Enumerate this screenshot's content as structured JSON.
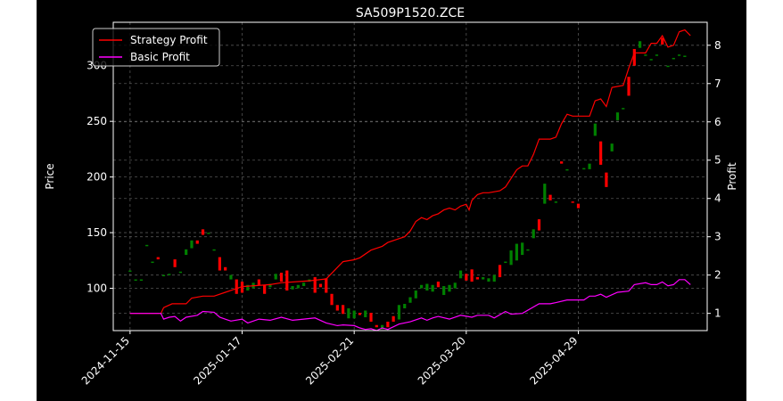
{
  "chart_data": {
    "type": "candlestick_with_lines",
    "title": "SA509P1520.ZCE",
    "ylabel_left": "Price",
    "ylabel_right": "Profit",
    "xlabel": "",
    "grid": true,
    "legend_placement": "top-left",
    "colors": {
      "background": "#000000",
      "up": "#008000",
      "down": "#ff0000",
      "strategy": "#ff0000",
      "basic": "#ff00ff",
      "grid": "#777777",
      "text": "#ffffff"
    },
    "x_ticks": [
      "2024-11-15",
      "2025-01-17",
      "2025-02-21",
      "2025-03-20",
      "2025-04-29"
    ],
    "x_tick_index": [
      0,
      40,
      80,
      120,
      160
    ],
    "x_range": [
      -6,
      206
    ],
    "y_left": {
      "range": [
        62,
        339
      ],
      "ticks": [
        100,
        150,
        200,
        250,
        300
      ]
    },
    "y_right": {
      "range": [
        0.55,
        8.6
      ],
      "ticks": [
        1,
        2,
        3,
        4,
        5,
        6,
        7,
        8
      ]
    },
    "candles": [
      {
        "i": 0,
        "o": 116,
        "c": 116
      },
      {
        "i": 2,
        "o": 108,
        "c": 108
      },
      {
        "i": 4,
        "o": 108,
        "c": 108
      },
      {
        "i": 6,
        "o": 139,
        "c": 139
      },
      {
        "i": 8,
        "o": 124,
        "c": 124
      },
      {
        "i": 10,
        "o": 128,
        "c": 126
      },
      {
        "i": 12,
        "o": 112,
        "c": 112
      },
      {
        "i": 14,
        "o": 113,
        "c": 113
      },
      {
        "i": 16,
        "o": 126,
        "c": 119
      },
      {
        "i": 18,
        "o": 115,
        "c": 115
      },
      {
        "i": 20,
        "o": 130,
        "c": 135
      },
      {
        "i": 22,
        "o": 136,
        "c": 143
      },
      {
        "i": 24,
        "o": 143,
        "c": 140
      },
      {
        "i": 26,
        "o": 153,
        "c": 148
      },
      {
        "i": 28,
        "o": 150,
        "c": 150
      },
      {
        "i": 30,
        "o": 134,
        "c": 135
      },
      {
        "i": 32,
        "o": 128,
        "c": 116
      },
      {
        "i": 34,
        "o": 119,
        "c": 116
      },
      {
        "i": 36,
        "o": 108,
        "c": 112
      },
      {
        "i": 38,
        "o": 108,
        "c": 95
      },
      {
        "i": 40,
        "o": 106,
        "c": 96
      },
      {
        "i": 42,
        "o": 98,
        "c": 103
      },
      {
        "i": 44,
        "o": 100,
        "c": 105
      },
      {
        "i": 46,
        "o": 108,
        "c": 103
      },
      {
        "i": 48,
        "o": 103,
        "c": 95
      },
      {
        "i": 50,
        "o": 101,
        "c": 104
      },
      {
        "i": 52,
        "o": 108,
        "c": 113
      },
      {
        "i": 54,
        "o": 114,
        "c": 106
      },
      {
        "i": 56,
        "o": 116,
        "c": 98
      },
      {
        "i": 58,
        "o": 99,
        "c": 102
      },
      {
        "i": 60,
        "o": 100,
        "c": 103
      },
      {
        "i": 62,
        "o": 102,
        "c": 105
      },
      {
        "i": 64,
        "o": 106,
        "c": 108
      },
      {
        "i": 66,
        "o": 110,
        "c": 96
      },
      {
        "i": 68,
        "o": 104,
        "c": 101
      },
      {
        "i": 70,
        "o": 109,
        "c": 96
      },
      {
        "i": 72,
        "o": 95,
        "c": 85
      },
      {
        "i": 74,
        "o": 85,
        "c": 80
      },
      {
        "i": 76,
        "o": 85,
        "c": 77
      },
      {
        "i": 78,
        "o": 73,
        "c": 82
      },
      {
        "i": 80,
        "o": 73,
        "c": 80
      },
      {
        "i": 82,
        "o": 78,
        "c": 76
      },
      {
        "i": 84,
        "o": 74,
        "c": 80
      },
      {
        "i": 86,
        "o": 78,
        "c": 70
      },
      {
        "i": 88,
        "o": 67,
        "c": 65
      },
      {
        "i": 90,
        "o": 63,
        "c": 67
      },
      {
        "i": 92,
        "o": 70,
        "c": 65
      },
      {
        "i": 94,
        "o": 75,
        "c": 70
      },
      {
        "i": 96,
        "o": 72,
        "c": 85
      },
      {
        "i": 98,
        "o": 82,
        "c": 86
      },
      {
        "i": 100,
        "o": 87,
        "c": 92
      },
      {
        "i": 102,
        "o": 91,
        "c": 98
      },
      {
        "i": 104,
        "o": 100,
        "c": 103
      },
      {
        "i": 106,
        "o": 98,
        "c": 104
      },
      {
        "i": 108,
        "o": 97,
        "c": 103
      },
      {
        "i": 110,
        "o": 106,
        "c": 101
      },
      {
        "i": 112,
        "o": 94,
        "c": 102
      },
      {
        "i": 114,
        "o": 97,
        "c": 103
      },
      {
        "i": 116,
        "o": 100,
        "c": 105
      },
      {
        "i": 118,
        "o": 109,
        "c": 116
      },
      {
        "i": 120,
        "o": 113,
        "c": 107
      },
      {
        "i": 122,
        "o": 117,
        "c": 106
      },
      {
        "i": 124,
        "o": 110,
        "c": 108
      },
      {
        "i": 126,
        "o": 108,
        "c": 110
      },
      {
        "i": 128,
        "o": 106,
        "c": 109
      },
      {
        "i": 130,
        "o": 106,
        "c": 112
      },
      {
        "i": 132,
        "o": 121,
        "c": 110
      },
      {
        "i": 134,
        "o": 124,
        "c": 124
      },
      {
        "i": 136,
        "o": 121,
        "c": 134
      },
      {
        "i": 138,
        "o": 125,
        "c": 140
      },
      {
        "i": 140,
        "o": 130,
        "c": 141
      },
      {
        "i": 142,
        "o": 134,
        "c": 135
      },
      {
        "i": 144,
        "o": 145,
        "c": 153
      },
      {
        "i": 146,
        "o": 162,
        "c": 152
      },
      {
        "i": 148,
        "o": 176,
        "c": 194
      },
      {
        "i": 150,
        "o": 184,
        "c": 179
      },
      {
        "i": 152,
        "o": 178,
        "c": 178
      },
      {
        "i": 154,
        "o": 214,
        "c": 212
      },
      {
        "i": 156,
        "o": 207,
        "c": 207
      },
      {
        "i": 158,
        "o": 178,
        "c": 177
      },
      {
        "i": 160,
        "o": 176,
        "c": 172
      },
      {
        "i": 162,
        "o": 208,
        "c": 208
      },
      {
        "i": 164,
        "o": 207,
        "c": 212
      },
      {
        "i": 166,
        "o": 237,
        "c": 248
      },
      {
        "i": 168,
        "o": 232,
        "c": 211
      },
      {
        "i": 170,
        "o": 204,
        "c": 191
      },
      {
        "i": 172,
        "o": 223,
        "c": 230
      },
      {
        "i": 174,
        "o": 251,
        "c": 258
      },
      {
        "i": 176,
        "o": 262,
        "c": 262
      },
      {
        "i": 178,
        "o": 290,
        "c": 273
      },
      {
        "i": 180,
        "o": 315,
        "c": 300
      },
      {
        "i": 182,
        "o": 316,
        "c": 322
      },
      {
        "i": 184,
        "o": 310,
        "c": 310
      },
      {
        "i": 186,
        "o": 306,
        "c": 306
      },
      {
        "i": 188,
        "o": 310,
        "c": 310
      },
      {
        "i": 190,
        "o": 325,
        "c": 319
      },
      {
        "i": 192,
        "o": 300,
        "c": 300
      },
      {
        "i": 194,
        "o": 307,
        "c": 307
      },
      {
        "i": 196,
        "o": 310,
        "c": 310
      },
      {
        "i": 198,
        "o": 309,
        "c": 309
      }
    ],
    "series": [
      {
        "name": "Strategy Profit",
        "color": "#ff0000",
        "points": [
          [
            0,
            1
          ],
          [
            10,
            1
          ],
          [
            11,
            1
          ],
          [
            12,
            1.15
          ],
          [
            15,
            1.25
          ],
          [
            20,
            1.25
          ],
          [
            22,
            1.4
          ],
          [
            26,
            1.45
          ],
          [
            30,
            1.45
          ],
          [
            34,
            1.55
          ],
          [
            36,
            1.6
          ],
          [
            40,
            1.7
          ],
          [
            50,
            1.75
          ],
          [
            54,
            1.8
          ],
          [
            64,
            1.85
          ],
          [
            70,
            1.9
          ],
          [
            76,
            2.35
          ],
          [
            80,
            2.4
          ],
          [
            82,
            2.45
          ],
          [
            86,
            2.65
          ],
          [
            90,
            2.75
          ],
          [
            92,
            2.85
          ],
          [
            96,
            2.95
          ],
          [
            98,
            3.0
          ],
          [
            100,
            3.15
          ],
          [
            102,
            3.4
          ],
          [
            104,
            3.5
          ],
          [
            106,
            3.45
          ],
          [
            108,
            3.55
          ],
          [
            110,
            3.6
          ],
          [
            112,
            3.7
          ],
          [
            114,
            3.75
          ],
          [
            116,
            3.7
          ],
          [
            118,
            3.8
          ],
          [
            120,
            3.85
          ],
          [
            121,
            3.7
          ],
          [
            122,
            3.95
          ],
          [
            124,
            4.1
          ],
          [
            126,
            4.15
          ],
          [
            128,
            4.15
          ],
          [
            132,
            4.2
          ],
          [
            134,
            4.3
          ],
          [
            138,
            4.75
          ],
          [
            140,
            4.85
          ],
          [
            142,
            4.85
          ],
          [
            144,
            5.15
          ],
          [
            146,
            5.55
          ],
          [
            150,
            5.55
          ],
          [
            152,
            5.6
          ],
          [
            154,
            5.95
          ],
          [
            156,
            6.2
          ],
          [
            158,
            6.15
          ],
          [
            160,
            6.15
          ],
          [
            164,
            6.15
          ],
          [
            166,
            6.55
          ],
          [
            168,
            6.6
          ],
          [
            170,
            6.4
          ],
          [
            172,
            6.9
          ],
          [
            176,
            6.95
          ],
          [
            178,
            7.4
          ],
          [
            180,
            7.8
          ],
          [
            184,
            7.8
          ],
          [
            186,
            8.05
          ],
          [
            188,
            8.05
          ],
          [
            190,
            8.25
          ],
          [
            192,
            7.95
          ],
          [
            194,
            8.0
          ],
          [
            196,
            8.35
          ],
          [
            198,
            8.4
          ],
          [
            200,
            8.25
          ]
        ]
      },
      {
        "name": "Basic Profit",
        "color": "#ff00ff",
        "points": [
          [
            0,
            1
          ],
          [
            10,
            1
          ],
          [
            11,
            1
          ],
          [
            12,
            0.85
          ],
          [
            14,
            0.9
          ],
          [
            16,
            0.92
          ],
          [
            18,
            0.8
          ],
          [
            20,
            0.9
          ],
          [
            24,
            0.95
          ],
          [
            26,
            1.05
          ],
          [
            30,
            1.03
          ],
          [
            32,
            0.9
          ],
          [
            36,
            0.8
          ],
          [
            40,
            0.85
          ],
          [
            42,
            0.75
          ],
          [
            46,
            0.85
          ],
          [
            50,
            0.82
          ],
          [
            54,
            0.9
          ],
          [
            58,
            0.82
          ],
          [
            62,
            0.85
          ],
          [
            66,
            0.88
          ],
          [
            70,
            0.75
          ],
          [
            74,
            0.68
          ],
          [
            76,
            0.7
          ],
          [
            80,
            0.68
          ],
          [
            82,
            0.62
          ],
          [
            84,
            0.58
          ],
          [
            86,
            0.6
          ],
          [
            88,
            0.55
          ],
          [
            90,
            0.62
          ],
          [
            92,
            0.58
          ],
          [
            96,
            0.72
          ],
          [
            100,
            0.78
          ],
          [
            104,
            0.88
          ],
          [
            106,
            0.82
          ],
          [
            108,
            0.88
          ],
          [
            110,
            0.92
          ],
          [
            114,
            0.85
          ],
          [
            118,
            0.95
          ],
          [
            122,
            0.9
          ],
          [
            124,
            0.95
          ],
          [
            128,
            0.95
          ],
          [
            130,
            0.88
          ],
          [
            134,
            1.05
          ],
          [
            136,
            0.98
          ],
          [
            140,
            1.0
          ],
          [
            146,
            1.25
          ],
          [
            150,
            1.25
          ],
          [
            152,
            1.28
          ],
          [
            156,
            1.35
          ],
          [
            158,
            1.35
          ],
          [
            162,
            1.35
          ],
          [
            164,
            1.45
          ],
          [
            166,
            1.45
          ],
          [
            168,
            1.5
          ],
          [
            170,
            1.42
          ],
          [
            174,
            1.55
          ],
          [
            178,
            1.58
          ],
          [
            180,
            1.75
          ],
          [
            184,
            1.8
          ],
          [
            186,
            1.75
          ],
          [
            188,
            1.75
          ],
          [
            190,
            1.82
          ],
          [
            192,
            1.72
          ],
          [
            194,
            1.75
          ],
          [
            196,
            1.88
          ],
          [
            198,
            1.88
          ],
          [
            200,
            1.75
          ]
        ]
      }
    ]
  }
}
